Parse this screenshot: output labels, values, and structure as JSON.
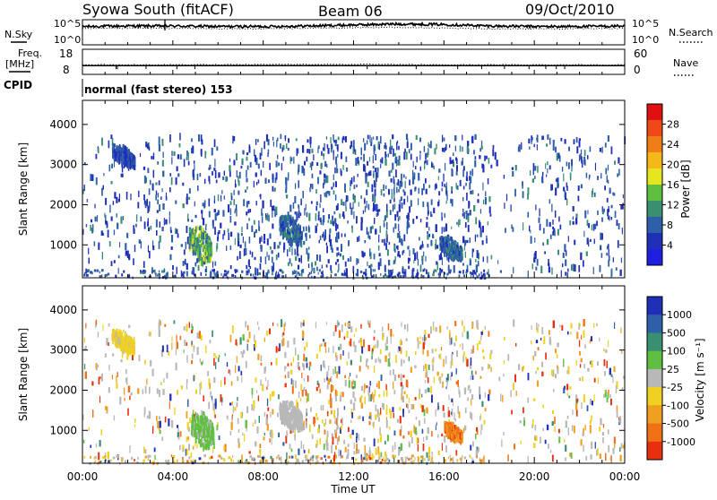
{
  "header": {
    "station": "Syowa South (fitACF)",
    "beam": "Beam 06",
    "date": "09/Oct/2010"
  },
  "top_panels": {
    "nsky_label": "N.Sky",
    "nsky_ticks": [
      "10^5",
      "10^0"
    ],
    "nsearch_label": "N.Search",
    "nsearch_ticks": [
      "10^5",
      "10^0"
    ],
    "freq_label": "Freq.",
    "freq_unit": "[MHz]",
    "freq_ticks": [
      "18",
      "8"
    ],
    "nave_label": "Nave",
    "nave_ticks": [
      "60",
      "0"
    ],
    "cpid_label": "CPID",
    "cpid_value": "normal (fast stereo) 153"
  },
  "x_axis": {
    "label": "Time UT",
    "ticks": [
      "00:00",
      "04:00",
      "08:00",
      "12:00",
      "16:00",
      "20:00",
      "00:00"
    ]
  },
  "power_panel": {
    "ylabel": "Slant Range [km]",
    "yticks": [
      "4000",
      "3000",
      "2000",
      "1000"
    ],
    "colorbar_label": "Power [dB]",
    "colorbar_ticks": [
      "28",
      "24",
      "20",
      "16",
      "12",
      "8",
      "4"
    ],
    "colorbar_colors": [
      "#e01010",
      "#f04818",
      "#f07e18",
      "#f5b818",
      "#e6e620",
      "#5fbf40",
      "#3a8f70",
      "#2f5fa8",
      "#1f2fb8",
      "#1f1fe0"
    ]
  },
  "velocity_panel": {
    "ylabel": "Slant Range [km]",
    "yticks": [
      "4000",
      "3000",
      "2000",
      "1000"
    ],
    "colorbar_label": "Velocity [m s⁻¹]",
    "colorbar_ticks": [
      "1000",
      "500",
      "100",
      "25",
      "-25",
      "-100",
      "-500",
      "-1000"
    ],
    "colorbar_colors": [
      "#1f2fb8",
      "#2f5fa8",
      "#3a8f70",
      "#5fbf40",
      "#b8b8b8",
      "#f0d020",
      "#f0a020",
      "#f07018",
      "#e83010"
    ]
  },
  "chart_data": [
    {
      "type": "line",
      "title": "Syowa South (fitACF) Beam 06 09/Oct/2010",
      "xlabel": "Time UT",
      "series": [
        {
          "name": "N.Sky",
          "x": [
            0,
            2,
            4,
            6,
            8,
            10,
            12,
            14,
            16,
            18,
            20,
            22,
            24
          ],
          "values": [
            3.6,
            3.7,
            3.7,
            3.6,
            3.6,
            3.7,
            3.9,
            4.1,
            4.0,
            3.7,
            3.6,
            3.6,
            3.7
          ]
        },
        {
          "name": "N.Search",
          "x": [
            0,
            2,
            4,
            6,
            8,
            10,
            12,
            14,
            16,
            18,
            20,
            22,
            24
          ],
          "values": [
            3.2,
            3.3,
            3.3,
            3.2,
            3.2,
            3.3,
            3.4,
            3.5,
            3.3,
            3.2,
            3.2,
            3.2,
            3.3
          ]
        }
      ],
      "ylim": [
        0,
        5
      ],
      "scale": "log"
    },
    {
      "type": "line",
      "series": [
        {
          "name": "Freq.",
          "x": [
            0,
            4,
            8,
            12,
            16,
            20,
            24
          ],
          "values": [
            11.5,
            11.5,
            11.5,
            11.5,
            11.5,
            11.5,
            11.5
          ]
        },
        {
          "name": "Nave",
          "x": [
            0,
            4,
            8,
            12,
            16,
            20,
            24
          ],
          "values": [
            23,
            23,
            24,
            24,
            23,
            23,
            23
          ]
        }
      ],
      "ylim_freq": [
        8,
        18
      ],
      "ylim_nave": [
        0,
        60
      ]
    },
    {
      "type": "heatmap",
      "xlabel": "Time UT",
      "ylabel": "Slant Range [km]",
      "xlim": [
        0,
        24
      ],
      "ylim": [
        180,
        4600
      ],
      "colorbar": "Power [dB]",
      "clim": [
        0,
        30
      ],
      "clusters": [
        {
          "t": 5.2,
          "r": 1000,
          "dt": 1.0,
          "dr": 450,
          "value": 12
        },
        {
          "t": 9.2,
          "r": 1350,
          "dt": 1.0,
          "dr": 350,
          "value": 8
        },
        {
          "t": 16.3,
          "r": 900,
          "dt": 1.0,
          "dr": 250,
          "value": 8
        },
        {
          "t": 1.8,
          "r": 3200,
          "dt": 1.0,
          "dr": 250,
          "value": 6
        }
      ]
    },
    {
      "type": "heatmap",
      "xlabel": "Time UT",
      "ylabel": "Slant Range [km]",
      "xlim": [
        0,
        24
      ],
      "ylim": [
        180,
        4600
      ],
      "colorbar": "Velocity [m s-1]",
      "clim": [
        -1000,
        1000
      ],
      "clusters": [
        {
          "t": 5.3,
          "r": 1000,
          "dt": 1.0,
          "dr": 450,
          "value": 150
        },
        {
          "t": 9.2,
          "r": 1350,
          "dt": 1.0,
          "dr": 350,
          "value": -60
        },
        {
          "t": 16.4,
          "r": 950,
          "dt": 0.8,
          "dr": 200,
          "value": -600
        },
        {
          "t": 1.8,
          "r": 3200,
          "dt": 1.0,
          "dr": 250,
          "value": -150
        }
      ]
    }
  ]
}
